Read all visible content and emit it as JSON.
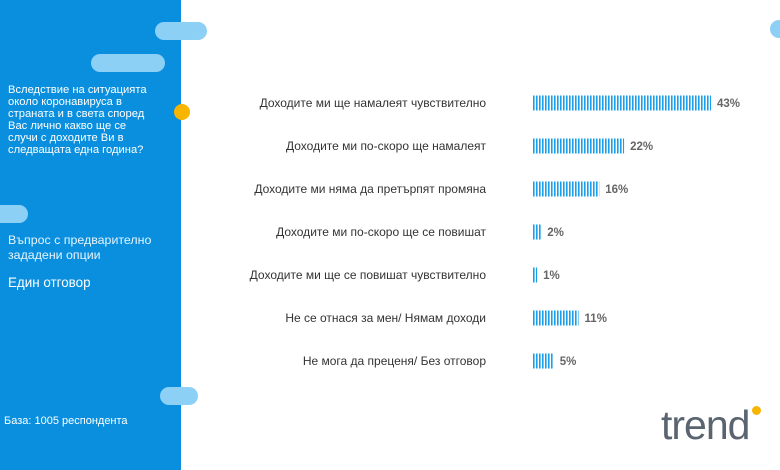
{
  "sidebar": {
    "question": "Вследствие на ситуацията около коронавируса в страната и в света според Вас лично какво ще се случи с доходите Ви в следващата една година?",
    "question_type": "Въпрос с предварително зададени опции",
    "answer_type": "Един отговор",
    "base": "База: 1005 респондента"
  },
  "logo": {
    "text": "trend"
  },
  "colors": {
    "sidebar": "#0a8fde",
    "bar": "#1a9fe8",
    "accent": "#f7b500",
    "pill": "#8dd0f5"
  },
  "chart_data": {
    "type": "bar",
    "orientation": "horizontal",
    "categories": [
      "Доходите ми ще намалеят чувствително",
      "Доходите ми по-скоро ще намалеят",
      "Доходите ми няма да претърпят промяна",
      "Доходите ми по-скоро ще се повишат",
      "Доходите ми ще се повишат чувствително",
      "Не се отнася за мен/ Нямам доходи",
      "Не мога да преценя/ Без отговор"
    ],
    "values": [
      43,
      22,
      16,
      2,
      1,
      11,
      5
    ],
    "value_labels": [
      "43%",
      "22%",
      "16%",
      "2%",
      "1%",
      "11%",
      "5%"
    ],
    "xlim": [
      0,
      100
    ],
    "grid": false,
    "legend": "none"
  }
}
